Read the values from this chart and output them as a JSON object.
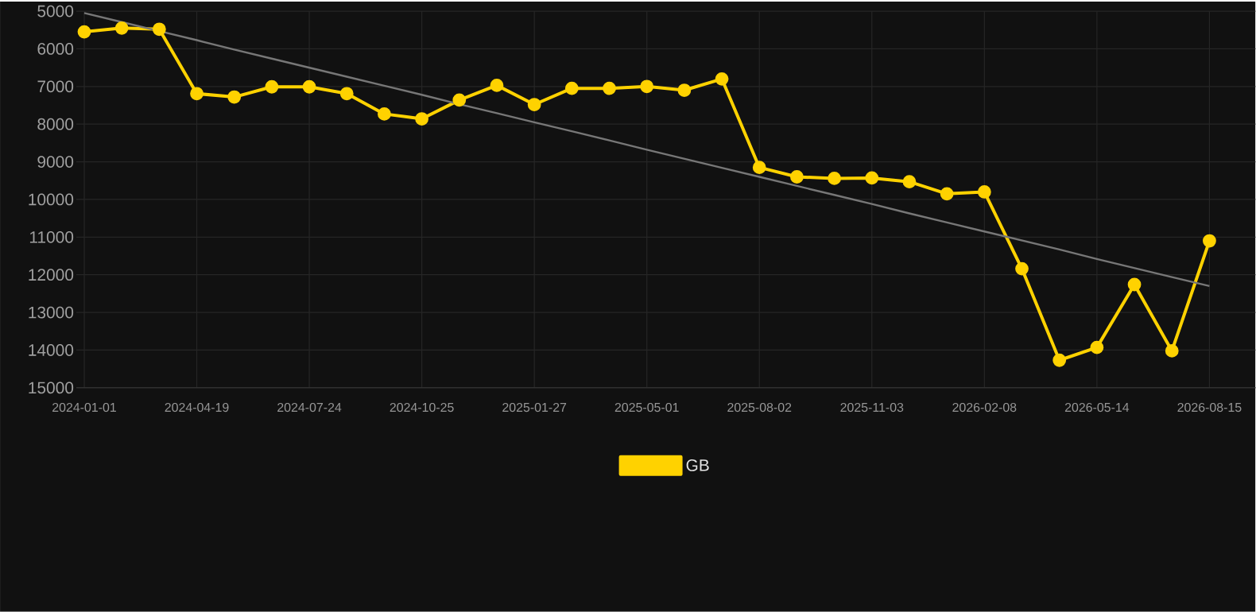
{
  "chart_data": {
    "type": "line",
    "categories": [
      "2024-01-01",
      null,
      null,
      "2024-04-19",
      null,
      null,
      "2024-07-24",
      null,
      null,
      "2024-10-25",
      null,
      null,
      "2025-01-27",
      null,
      null,
      "2025-05-01",
      null,
      null,
      "2025-08-02",
      null,
      null,
      "2025-11-03",
      null,
      null,
      "2026-02-08",
      null,
      null,
      "2026-05-14",
      null,
      null,
      "2026-08-15"
    ],
    "series": [
      {
        "name": "GB",
        "color": "#ffd200",
        "marker": "circle",
        "values": [
          5550,
          5450,
          5480,
          7190,
          7280,
          7010,
          7010,
          7190,
          7730,
          7860,
          7360,
          6970,
          7480,
          7050,
          7050,
          7000,
          7100,
          6800,
          9150,
          9400,
          9440,
          9430,
          9530,
          9850,
          9800,
          11840,
          14270,
          13930,
          12260,
          14020,
          11100
        ]
      },
      {
        "type": "line",
        "color": "#777777",
        "marker": "none",
        "values": [
          5050,
          5290,
          5530,
          5770,
          6020,
          6260,
          6500,
          6740,
          6980,
          7220,
          7470,
          7710,
          7950,
          8190,
          8430,
          8680,
          8920,
          9160,
          9400,
          9640,
          9880,
          10120,
          10370,
          10610,
          10850,
          11090,
          11330,
          11580,
          11820,
          12060,
          12300
        ]
      }
    ],
    "ylim": [
      15000,
      5000
    ],
    "yticks": [
      5000,
      6000,
      7000,
      8000,
      9000,
      10000,
      11000,
      12000,
      13000,
      14000,
      15000
    ],
    "grid": true,
    "legend": "bottom",
    "line_style": "solid"
  }
}
